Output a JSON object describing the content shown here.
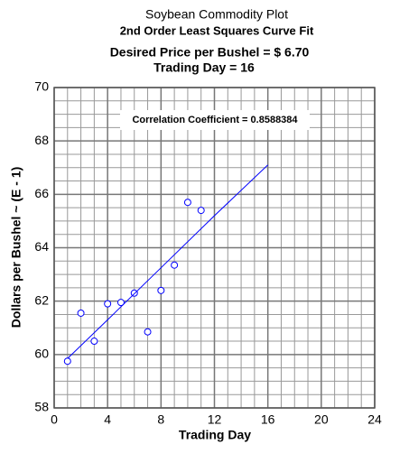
{
  "chart_data": {
    "type": "scatter",
    "title": "Soybean Commodity Plot",
    "subtitle": "2nd Order Least Squares Curve Fit",
    "desired_price": "Desired Price per Bushel =  $ 6.70",
    "trading_day": "Trading Day = 16",
    "annotation": "Correlation Coefficient = 0.8588384",
    "x_label": "Trading Day",
    "y_label": "Dollars per Bushel  ~ (E - 1)",
    "xlim": [
      0,
      24
    ],
    "xticks": [
      0,
      4,
      8,
      12,
      16,
      20,
      24
    ],
    "ylim": [
      58,
      70
    ],
    "yticks": [
      58,
      60,
      62,
      64,
      66,
      68,
      70
    ],
    "grid": true,
    "series": [
      {
        "type": "scatter",
        "color": "#0000ff",
        "x": [
          1,
          2,
          3,
          4,
          5,
          6,
          7,
          8,
          9,
          10,
          11
        ],
        "values": [
          59.75,
          61.55,
          60.5,
          61.9,
          61.95,
          62.3,
          60.85,
          62.4,
          63.35,
          65.7,
          65.4
        ]
      },
      {
        "type": "line",
        "color": "#0000ff",
        "x": [
          1,
          4,
          8,
          12,
          16
        ],
        "values": [
          59.85,
          61.3,
          63.25,
          65.2,
          67.1
        ]
      }
    ]
  }
}
